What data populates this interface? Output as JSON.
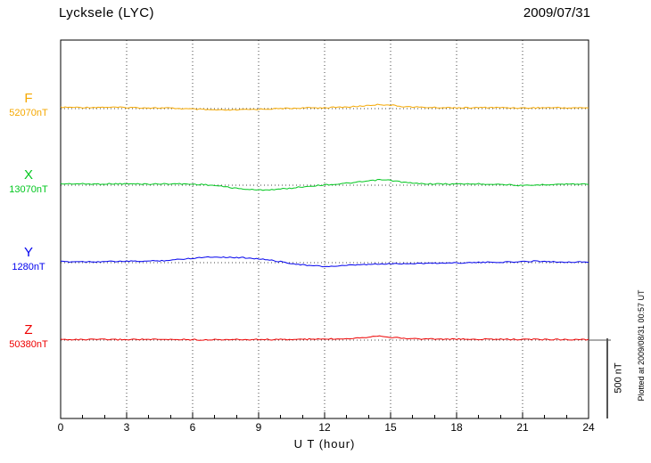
{
  "header": {
    "title": "Lycksele (LYC)",
    "date": "2009/07/31"
  },
  "axis": {
    "xlabel": "U T (hour)",
    "ticks": [
      0,
      3,
      6,
      9,
      12,
      15,
      18,
      21,
      24
    ]
  },
  "scalebar": {
    "label": "500 nT",
    "value_nT": 500
  },
  "footer": {
    "plotted_at": "Plotted at 2009/08/31 00:57 UT"
  },
  "chart_data": {
    "type": "line",
    "title": "Lycksele (LYC) magnetogram 2009/07/31",
    "xlabel": "U T (hour)",
    "xlim": [
      0,
      24
    ],
    "x_tick_step_hours": 3,
    "grid": "dotted vertical at 3-hour intervals, dotted horizontal baseline per trace",
    "x_step_hours": 0.5,
    "scale_bar_nT": 500,
    "series": [
      {
        "name": "F",
        "color": "#F5A800",
        "baseline_nT": 52070,
        "baseline_label": "52070nT",
        "offsets_nT": [
          8,
          8,
          7,
          8,
          9,
          8,
          7,
          6,
          5,
          4,
          3,
          0,
          -3,
          -6,
          -8,
          -10,
          -8,
          -6,
          -4,
          -2,
          0,
          2,
          4,
          5,
          6,
          8,
          10,
          14,
          20,
          26,
          22,
          14,
          10,
          8,
          7,
          6,
          6,
          5,
          6,
          7,
          6,
          5,
          4,
          5,
          6,
          6,
          5,
          5,
          5
        ]
      },
      {
        "name": "X",
        "color": "#00C71E",
        "baseline_nT": 13070,
        "baseline_label": "13070nT",
        "offsets_nT": [
          8,
          9,
          8,
          7,
          8,
          9,
          8,
          8,
          7,
          8,
          9,
          8,
          6,
          4,
          -2,
          -10,
          -20,
          -26,
          -30,
          -28,
          -24,
          -18,
          -10,
          -4,
          2,
          6,
          12,
          18,
          26,
          34,
          30,
          20,
          12,
          9,
          8,
          8,
          7,
          8,
          8,
          7,
          6,
          2,
          -4,
          0,
          4,
          6,
          7,
          7,
          7
        ]
      },
      {
        "name": "Y",
        "color": "#0000EE",
        "baseline_nT": 1280,
        "baseline_label": "1280nT",
        "offsets_nT": [
          6,
          6,
          7,
          6,
          7,
          8,
          8,
          9,
          10,
          12,
          16,
          22,
          28,
          34,
          36,
          34,
          32,
          30,
          24,
          16,
          6,
          -4,
          -14,
          -20,
          -24,
          -22,
          -18,
          -14,
          -11,
          -9,
          -7,
          -6,
          -5,
          -4,
          -3,
          -2,
          -1,
          0,
          1,
          2,
          3,
          4,
          6,
          10,
          8,
          5,
          4,
          4,
          4
        ]
      },
      {
        "name": "Z",
        "color": "#EE0000",
        "baseline_nT": 50380,
        "baseline_label": "50380nT",
        "offsets_nT": [
          4,
          4,
          3,
          4,
          4,
          3,
          4,
          5,
          4,
          3,
          4,
          4,
          3,
          2,
          3,
          4,
          3,
          3,
          4,
          4,
          3,
          4,
          5,
          6,
          6,
          8,
          10,
          14,
          20,
          28,
          18,
          12,
          9,
          8,
          7,
          6,
          6,
          5,
          5,
          6,
          5,
          5,
          4,
          5,
          4,
          4,
          4,
          3,
          3
        ]
      }
    ]
  }
}
